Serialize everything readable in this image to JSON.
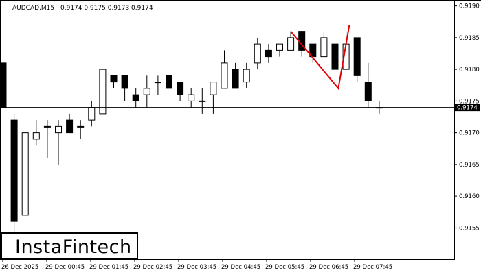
{
  "header": {
    "symbol": "AUDCAD,M15",
    "ohlc": "0.9174 0.9175 0.9173 0.9174"
  },
  "logo": {
    "text": "InstaFintech"
  },
  "current_price": {
    "value": 0.9174,
    "label": "0.9174"
  },
  "colors": {
    "bull": "#ffffff",
    "bear": "#000000",
    "pattern": "#e00000",
    "axis": "#000000"
  },
  "chart_data": {
    "type": "candlestick",
    "title": "AUDCAD,M15",
    "ylim": [
      0.91505,
      0.91905
    ],
    "y_ticks": [
      "0.9190",
      "0.9185",
      "0.9180",
      "0.9175",
      "0.9170",
      "0.9165",
      "0.9160",
      "0.9155"
    ],
    "x_tick_labels": [
      "26 Dec 2025",
      "29 Dec 00:45",
      "29 Dec 01:45",
      "29 Dec 02:45",
      "29 Dec 03:45",
      "29 Dec 04:45",
      "29 Dec 05:45",
      "29 Dec 06:45",
      "29 Dec 07:45"
    ],
    "grid": false,
    "candles": [
      {
        "o": 0.9181,
        "h": 0.9181,
        "l": 0.9174,
        "c": 0.9174
      },
      {
        "o": 0.9172,
        "h": 0.9173,
        "l": 0.9154,
        "c": 0.9156
      },
      {
        "o": 0.9157,
        "h": 0.917,
        "l": 0.9157,
        "c": 0.917
      },
      {
        "o": 0.9169,
        "h": 0.9172,
        "l": 0.9168,
        "c": 0.917
      },
      {
        "o": 0.9171,
        "h": 0.9172,
        "l": 0.9166,
        "c": 0.9171
      },
      {
        "o": 0.917,
        "h": 0.9172,
        "l": 0.9165,
        "c": 0.9171
      },
      {
        "o": 0.9172,
        "h": 0.9173,
        "l": 0.917,
        "c": 0.917
      },
      {
        "o": 0.9171,
        "h": 0.9172,
        "l": 0.9169,
        "c": 0.9171
      },
      {
        "o": 0.9172,
        "h": 0.9175,
        "l": 0.9171,
        "c": 0.9174
      },
      {
        "o": 0.9173,
        "h": 0.918,
        "l": 0.9173,
        "c": 0.918
      },
      {
        "o": 0.9179,
        "h": 0.9179,
        "l": 0.9177,
        "c": 0.9178
      },
      {
        "o": 0.9179,
        "h": 0.9179,
        "l": 0.9175,
        "c": 0.9177
      },
      {
        "o": 0.9176,
        "h": 0.9177,
        "l": 0.9174,
        "c": 0.9175
      },
      {
        "o": 0.9176,
        "h": 0.9179,
        "l": 0.9174,
        "c": 0.9177
      },
      {
        "o": 0.9178,
        "h": 0.9179,
        "l": 0.9176,
        "c": 0.9178
      },
      {
        "o": 0.9179,
        "h": 0.9179,
        "l": 0.9177,
        "c": 0.9177
      },
      {
        "o": 0.9178,
        "h": 0.9178,
        "l": 0.9175,
        "c": 0.9176
      },
      {
        "o": 0.9175,
        "h": 0.9177,
        "l": 0.9174,
        "c": 0.9176
      },
      {
        "o": 0.9175,
        "h": 0.9177,
        "l": 0.9173,
        "c": 0.9175
      },
      {
        "o": 0.9176,
        "h": 0.9178,
        "l": 0.9173,
        "c": 0.9178
      },
      {
        "o": 0.9177,
        "h": 0.9183,
        "l": 0.9177,
        "c": 0.9181
      },
      {
        "o": 0.918,
        "h": 0.9181,
        "l": 0.9177,
        "c": 0.9177
      },
      {
        "o": 0.9178,
        "h": 0.9181,
        "l": 0.9177,
        "c": 0.918
      },
      {
        "o": 0.9181,
        "h": 0.9185,
        "l": 0.918,
        "c": 0.9184
      },
      {
        "o": 0.9183,
        "h": 0.9184,
        "l": 0.9181,
        "c": 0.9182
      },
      {
        "o": 0.9183,
        "h": 0.9184,
        "l": 0.9182,
        "c": 0.9184
      },
      {
        "o": 0.9183,
        "h": 0.9186,
        "l": 0.9183,
        "c": 0.9185
      },
      {
        "o": 0.9186,
        "h": 0.9186,
        "l": 0.9182,
        "c": 0.9183
      },
      {
        "o": 0.9184,
        "h": 0.9184,
        "l": 0.9181,
        "c": 0.9182
      },
      {
        "o": 0.9182,
        "h": 0.9186,
        "l": 0.9182,
        "c": 0.9185
      },
      {
        "o": 0.9184,
        "h": 0.9185,
        "l": 0.918,
        "c": 0.918
      },
      {
        "o": 0.918,
        "h": 0.9186,
        "l": 0.918,
        "c": 0.9184
      },
      {
        "o": 0.9185,
        "h": 0.9185,
        "l": 0.9178,
        "c": 0.9179
      },
      {
        "o": 0.9178,
        "h": 0.9181,
        "l": 0.9174,
        "c": 0.9175
      },
      {
        "o": 0.9174,
        "h": 0.9175,
        "l": 0.9173,
        "c": 0.9174
      }
    ],
    "pattern": {
      "type": "double-top",
      "points": [
        {
          "candle": 26,
          "price": 0.9186
        },
        {
          "candle": 30.3,
          "price": 0.9177
        },
        {
          "candle": 31.3,
          "price": 0.9187
        }
      ]
    }
  }
}
